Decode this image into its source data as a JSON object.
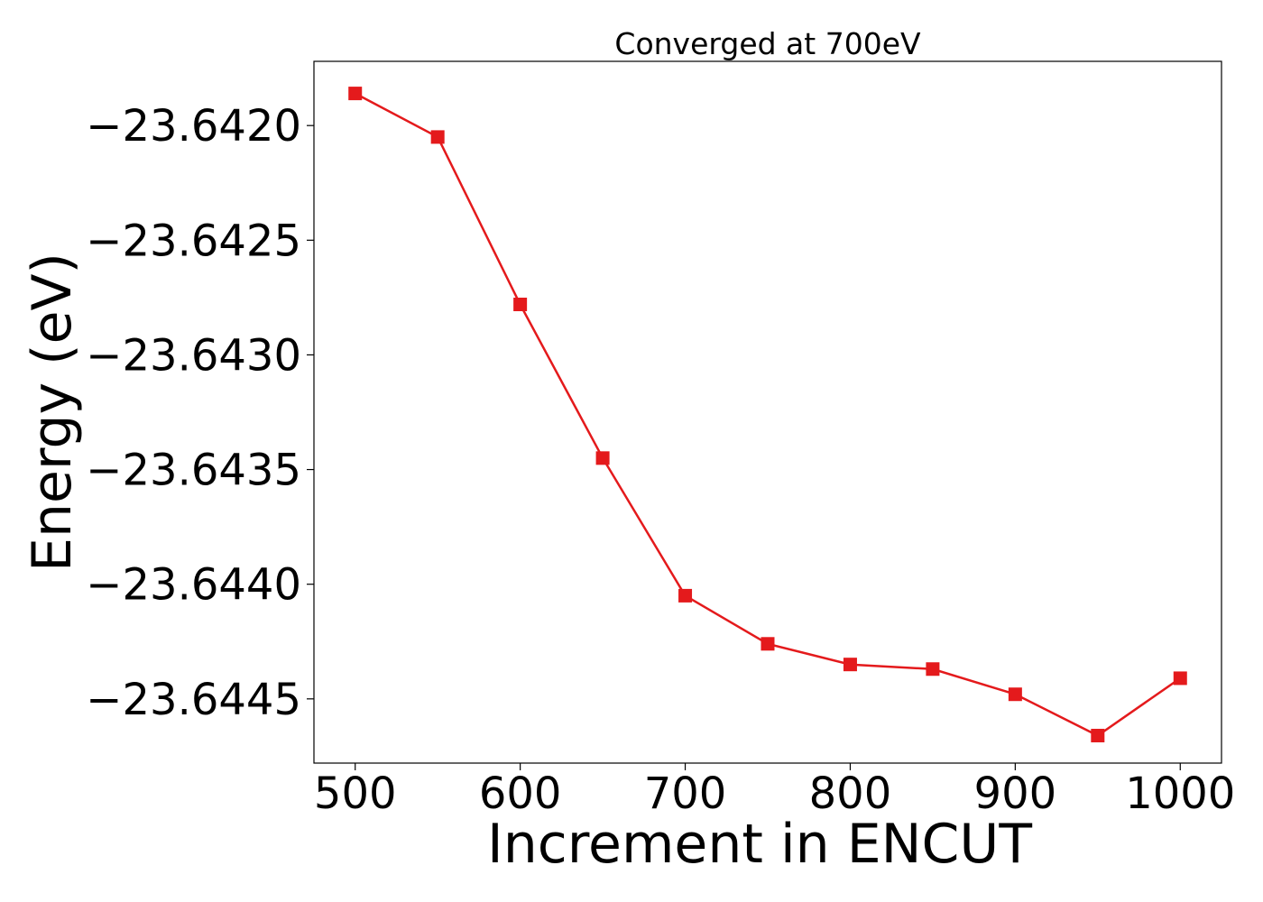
{
  "chart_data": {
    "type": "line",
    "title": "Converged at 700eV",
    "xlabel": "Increment in ENCUT",
    "ylabel": "Energy (eV)",
    "x": [
      500,
      550,
      600,
      650,
      700,
      750,
      800,
      850,
      900,
      950,
      1000
    ],
    "series": [
      {
        "values": [
          -23.64186,
          -23.64205,
          -23.64278,
          -23.64345,
          -23.64405,
          -23.64426,
          -23.64435,
          -23.64437,
          -23.64448,
          -23.64466,
          -23.64441
        ],
        "color": "#e41a1c",
        "marker": "square"
      }
    ],
    "xlim": [
      475,
      1025
    ],
    "ylim": [
      -23.64478,
      -23.64172
    ],
    "x_ticks": [
      500,
      600,
      700,
      800,
      900,
      1000
    ],
    "x_tick_labels": [
      "500",
      "600",
      "700",
      "800",
      "900",
      "1000"
    ],
    "y_ticks": [
      -23.642,
      -23.6425,
      -23.643,
      -23.6435,
      -23.644,
      -23.6445
    ],
    "y_tick_labels": [
      "−23.6420",
      "−23.6425",
      "−23.6430",
      "−23.6435",
      "−23.6440",
      "−23.6445"
    ],
    "grid": false,
    "legend": "none"
  }
}
